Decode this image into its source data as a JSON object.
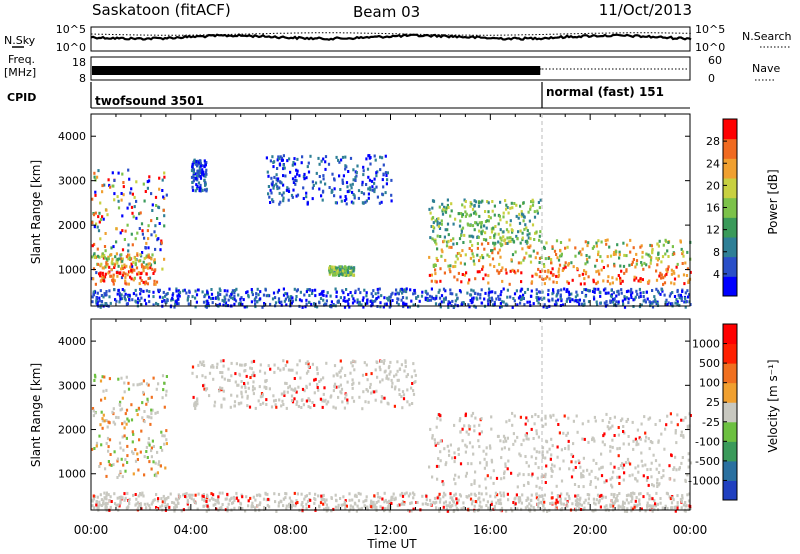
{
  "header": {
    "station": "Saskatoon (fitACF)",
    "beam": "Beam 03",
    "date": "11/Oct/2013"
  },
  "noise_panel": {
    "left_label": "N.Sky",
    "right_label": "N.Search",
    "left_ticks": [
      "10^5",
      "10^0"
    ],
    "right_ticks": [
      "10^5",
      "10^0"
    ]
  },
  "freq_panel": {
    "left_label_1": "Freq.",
    "left_label_2": "[MHz]",
    "left_ticks": [
      "18",
      "8"
    ],
    "right_label": "Nave",
    "right_ticks": [
      "60",
      "0"
    ]
  },
  "cpid": {
    "label": "CPID",
    "segments": [
      {
        "name": "twofsound 3501",
        "start_hour": 0,
        "end_hour": 18
      },
      {
        "name": "normal (fast) 151",
        "start_hour": 18,
        "end_hour": 24
      }
    ]
  },
  "chart_data": [
    {
      "type": "heatmap",
      "quantity": "Power",
      "ylabel": "Slant Range [km]",
      "ylim": [
        180,
        4500
      ],
      "yticks": [
        "1000",
        "2000",
        "3000",
        "4000"
      ],
      "xlim_hours": [
        0,
        24
      ],
      "colorbar": {
        "label": "Power [dB]",
        "ticks": [
          "28",
          "24",
          "20",
          "16",
          "12",
          "8",
          "4"
        ],
        "colors": [
          "#0000ff",
          "#2a4fc8",
          "#2e7f96",
          "#3a9a5a",
          "#7cc24a",
          "#c8d040",
          "#f0a030",
          "#f06a20",
          "#ff0000"
        ]
      },
      "echo_regions": [
        {
          "t": [
            0.0,
            3.0
          ],
          "range": [
            800,
            3300
          ],
          "level": "mixed"
        },
        {
          "t": [
            0.0,
            2.6
          ],
          "range": [
            700,
            1400
          ],
          "level": "high"
        },
        {
          "t": [
            4.0,
            4.6
          ],
          "range": [
            2800,
            3500
          ],
          "level": "low"
        },
        {
          "t": [
            7.0,
            12.0
          ],
          "range": [
            2500,
            3600
          ],
          "level": "low"
        },
        {
          "t": [
            9.5,
            10.5
          ],
          "range": [
            900,
            1100
          ],
          "level": "mid"
        },
        {
          "t": [
            0.0,
            24.0
          ],
          "range": [
            180,
            600
          ],
          "level": "low"
        },
        {
          "t": [
            13.5,
            24.0
          ],
          "range": [
            700,
            1700
          ],
          "level": "high"
        },
        {
          "t": [
            13.5,
            18.0
          ],
          "range": [
            1600,
            2600
          ],
          "level": "mid"
        }
      ]
    },
    {
      "type": "heatmap",
      "quantity": "Velocity",
      "ylabel": "Slant Range [km]",
      "ylim": [
        180,
        4500
      ],
      "yticks": [
        "1000",
        "2000",
        "3000",
        "4000"
      ],
      "xlim_hours": [
        0,
        24
      ],
      "colorbar": {
        "label": "Velocity [m s⁻¹]",
        "ticks": [
          "1000",
          "500",
          "100",
          "25",
          "-25",
          "-100",
          "-500",
          "-1000"
        ],
        "colors": [
          "#2040c0",
          "#2a70a0",
          "#3a9a5a",
          "#6cc040",
          "#c8c8c0",
          "#f0a030",
          "#f07020",
          "#ff2000",
          "#ff0000"
        ]
      },
      "echo_regions": [
        {
          "t": [
            0.0,
            3.0
          ],
          "range": [
            900,
            3300
          ],
          "level": "negative"
        },
        {
          "t": [
            4.0,
            13.0
          ],
          "range": [
            2500,
            3600
          ],
          "level": "near-zero"
        },
        {
          "t": [
            0.0,
            24.0
          ],
          "range": [
            180,
            600
          ],
          "level": "near-zero"
        },
        {
          "t": [
            13.5,
            24.0
          ],
          "range": [
            700,
            2400
          ],
          "level": "near-zero"
        }
      ]
    }
  ],
  "x_axis": {
    "ticks": [
      "00:00",
      "04:00",
      "08:00",
      "12:00",
      "16:00",
      "20:00",
      "00:00"
    ],
    "label": "Time UT"
  }
}
